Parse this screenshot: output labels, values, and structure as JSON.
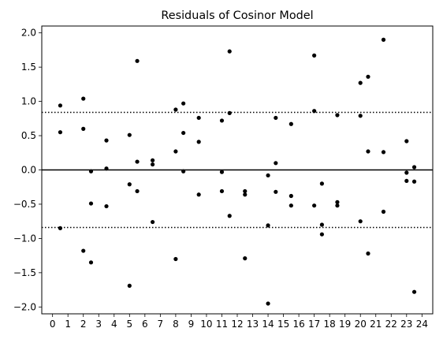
{
  "chart_data": {
    "type": "scatter",
    "title": "Residuals of Cosinor Model",
    "xlabel": "",
    "ylabel": "",
    "xlim": [
      -0.7,
      24.7
    ],
    "ylim": [
      -2.1,
      2.1
    ],
    "x_ticks": [
      0,
      1,
      2,
      3,
      4,
      5,
      6,
      7,
      8,
      9,
      10,
      11,
      12,
      13,
      14,
      15,
      16,
      17,
      18,
      19,
      20,
      21,
      22,
      23,
      24
    ],
    "y_ticks": [
      -2.0,
      -1.5,
      -1.0,
      -0.5,
      0.0,
      0.5,
      1.0,
      1.5,
      2.0
    ],
    "y_tick_labels": [
      "−2.0",
      "−1.5",
      "−1.0",
      "−0.5",
      "0.0",
      "0.5",
      "1.0",
      "1.5",
      "2.0"
    ],
    "grid": false,
    "marker_color": "#000000",
    "reference_lines": [
      {
        "y": 0.0,
        "style": "solid"
      },
      {
        "y": 0.84,
        "style": "dotted"
      },
      {
        "y": -0.84,
        "style": "dotted"
      }
    ],
    "points": [
      {
        "x": 0.5,
        "y": 0.94
      },
      {
        "x": 0.5,
        "y": 0.55
      },
      {
        "x": 0.5,
        "y": -0.85
      },
      {
        "x": 2.0,
        "y": 1.04
      },
      {
        "x": 2.0,
        "y": 0.6
      },
      {
        "x": 2.0,
        "y": -1.18
      },
      {
        "x": 2.5,
        "y": -0.02
      },
      {
        "x": 2.5,
        "y": -0.49
      },
      {
        "x": 2.5,
        "y": -1.35
      },
      {
        "x": 3.5,
        "y": 0.43
      },
      {
        "x": 3.5,
        "y": 0.02
      },
      {
        "x": 3.5,
        "y": -0.53
      },
      {
        "x": 5.0,
        "y": 0.51
      },
      {
        "x": 5.0,
        "y": -0.21
      },
      {
        "x": 5.0,
        "y": -1.69
      },
      {
        "x": 5.5,
        "y": 1.59
      },
      {
        "x": 5.5,
        "y": 0.12
      },
      {
        "x": 5.5,
        "y": -0.31
      },
      {
        "x": 6.5,
        "y": 0.14
      },
      {
        "x": 6.5,
        "y": 0.08
      },
      {
        "x": 6.5,
        "y": -0.76
      },
      {
        "x": 8.0,
        "y": 0.88
      },
      {
        "x": 8.0,
        "y": 0.27
      },
      {
        "x": 8.0,
        "y": -1.3
      },
      {
        "x": 8.5,
        "y": 0.97
      },
      {
        "x": 8.5,
        "y": 0.54
      },
      {
        "x": 8.5,
        "y": -0.02
      },
      {
        "x": 9.5,
        "y": 0.76
      },
      {
        "x": 9.5,
        "y": 0.41
      },
      {
        "x": 9.5,
        "y": -0.36
      },
      {
        "x": 11.0,
        "y": 0.72
      },
      {
        "x": 11.0,
        "y": -0.03
      },
      {
        "x": 11.0,
        "y": -0.31
      },
      {
        "x": 11.5,
        "y": 1.73
      },
      {
        "x": 11.5,
        "y": 0.83
      },
      {
        "x": 11.5,
        "y": -0.67
      },
      {
        "x": 12.5,
        "y": -0.31
      },
      {
        "x": 12.5,
        "y": -0.36
      },
      {
        "x": 12.5,
        "y": -1.29
      },
      {
        "x": 14.0,
        "y": -0.08
      },
      {
        "x": 14.0,
        "y": -0.81
      },
      {
        "x": 14.0,
        "y": -1.95
      },
      {
        "x": 14.5,
        "y": 0.76
      },
      {
        "x": 14.5,
        "y": 0.1
      },
      {
        "x": 14.5,
        "y": -0.32
      },
      {
        "x": 15.5,
        "y": 0.67
      },
      {
        "x": 15.5,
        "y": -0.38
      },
      {
        "x": 15.5,
        "y": -0.52
      },
      {
        "x": 17.0,
        "y": 1.67
      },
      {
        "x": 17.0,
        "y": 0.86
      },
      {
        "x": 17.0,
        "y": -0.52
      },
      {
        "x": 17.5,
        "y": -0.2
      },
      {
        "x": 17.5,
        "y": -0.8
      },
      {
        "x": 17.5,
        "y": -0.94
      },
      {
        "x": 18.5,
        "y": 0.8
      },
      {
        "x": 18.5,
        "y": -0.47
      },
      {
        "x": 18.5,
        "y": -0.52
      },
      {
        "x": 20.0,
        "y": 1.27
      },
      {
        "x": 20.0,
        "y": 0.79
      },
      {
        "x": 20.0,
        "y": -0.75
      },
      {
        "x": 20.5,
        "y": 1.36
      },
      {
        "x": 20.5,
        "y": 0.27
      },
      {
        "x": 20.5,
        "y": -1.22
      },
      {
        "x": 21.5,
        "y": 1.9
      },
      {
        "x": 21.5,
        "y": 0.26
      },
      {
        "x": 21.5,
        "y": -0.61
      },
      {
        "x": 23.0,
        "y": 0.42
      },
      {
        "x": 23.0,
        "y": -0.04
      },
      {
        "x": 23.0,
        "y": -0.16
      },
      {
        "x": 23.5,
        "y": 0.04
      },
      {
        "x": 23.5,
        "y": -0.17
      },
      {
        "x": 23.5,
        "y": -1.78
      }
    ]
  }
}
